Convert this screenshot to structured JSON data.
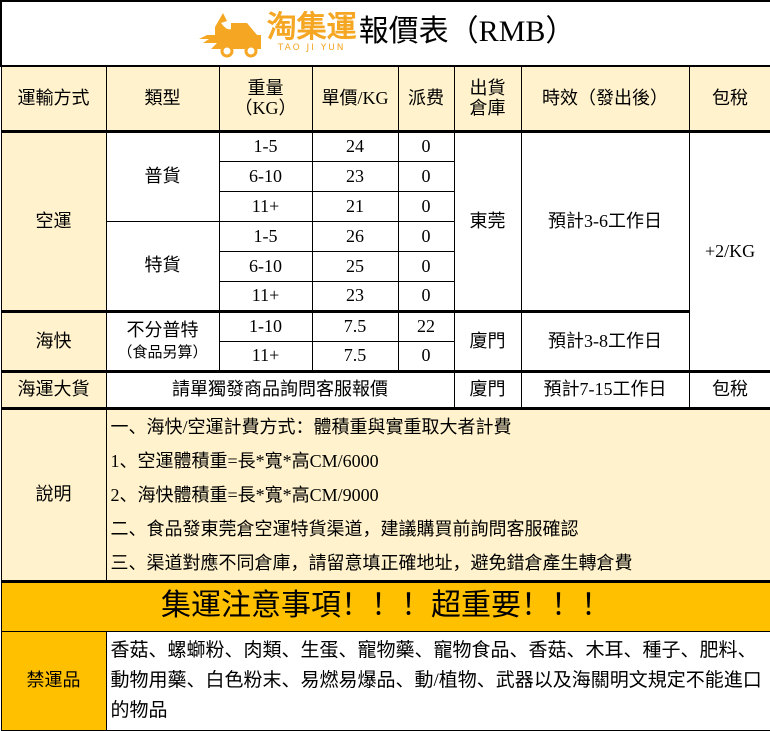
{
  "title": {
    "logo_text": "淘集運",
    "logo_sub": "TAO JI YUN",
    "text": "報價表（RMB）"
  },
  "headers": {
    "method": "運輸方式",
    "type": "類型",
    "weight": "重量\n（KG）",
    "weight_line1": "重量",
    "weight_line2": "（KG）",
    "unit_price": "單價/KG",
    "delivery_fee": "派费",
    "warehouse_line1": "出貨",
    "warehouse_line2": "倉庫",
    "timing": "時效（發出後）",
    "tax": "包稅"
  },
  "air": {
    "method": "空運",
    "warehouse": "東莞",
    "timing": "預計3-6工作日",
    "tax": "+2/KG",
    "groups": [
      {
        "type": "普貨",
        "rows": [
          {
            "weight": "1-5",
            "price": "24",
            "fee": "0"
          },
          {
            "weight": "6-10",
            "price": "23",
            "fee": "0"
          },
          {
            "weight": "11+",
            "price": "21",
            "fee": "0"
          }
        ]
      },
      {
        "type": "特貨",
        "rows": [
          {
            "weight": "1-5",
            "price": "26",
            "fee": "0"
          },
          {
            "weight": "6-10",
            "price": "25",
            "fee": "0"
          },
          {
            "weight": "11+",
            "price": "23",
            "fee": "0"
          }
        ]
      }
    ]
  },
  "sea_express": {
    "method": "海快",
    "type": "不分普特",
    "type_note": "（食品另算）",
    "warehouse": "廈門",
    "timing": "預計3-8工作日",
    "rows": [
      {
        "weight": "1-10",
        "price": "7.5",
        "fee": "22"
      },
      {
        "weight": "11+",
        "price": "7.5",
        "fee": "0"
      }
    ]
  },
  "sea_bulk": {
    "method": "海運大貨",
    "note": "請單獨發商品詢問客服報價",
    "warehouse": "廈門",
    "timing": "預計7-15工作日",
    "tax": "包稅"
  },
  "notes": {
    "label": "說明",
    "lines": [
      "一、海快/空運計費方式：體積重與實重取大者計費",
      "1、空運體積重=長*寬*高CM/6000",
      "2、海快體積重=長*寬*高CM/9000",
      "二、食品發東莞倉空運特貨渠道，建議購買前詢問客服確認",
      "三、渠道對應不同倉庫，請留意填正確地址，避免錯倉產生轉倉費"
    ]
  },
  "banner": "集運注意事項！！！超重要！！！",
  "forbidden": {
    "label": "禁運品",
    "text": "香菇、螺螄粉、肉類、生蛋、寵物藥、寵物食品、香菇、木耳、種子、肥料、動物用藥、白色粉末、易燃易爆品、動/植物、武器以及海關明文規定不能進口的物品"
  },
  "colors": {
    "header_bg": "#fff2cc",
    "banner_bg": "#ffc000",
    "logo": "#f5a623"
  }
}
